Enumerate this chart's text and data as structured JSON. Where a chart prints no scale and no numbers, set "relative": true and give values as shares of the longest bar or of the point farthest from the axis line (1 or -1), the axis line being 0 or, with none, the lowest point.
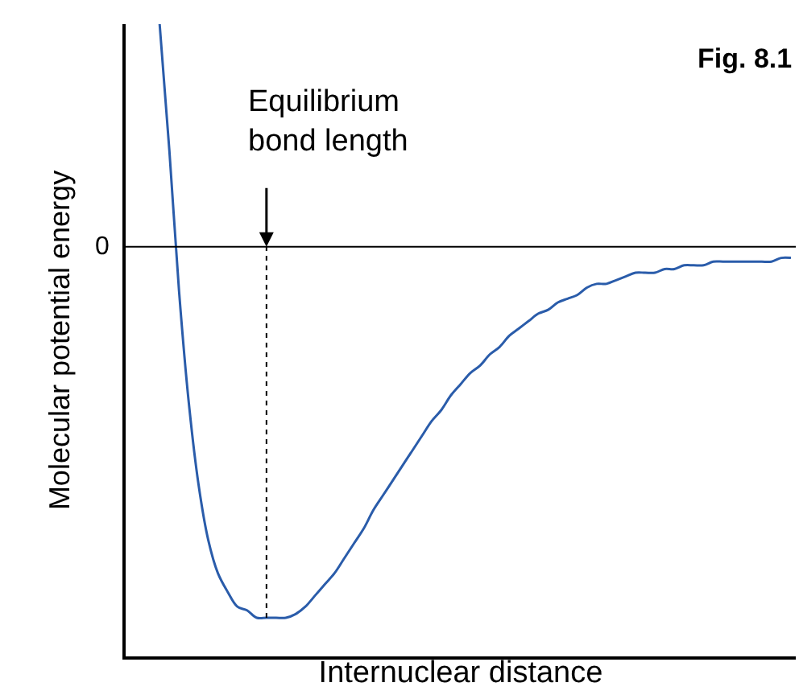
{
  "chart_data": {
    "type": "line",
    "relative": true,
    "xlabel": "Internuclear distance",
    "ylabel": "Molecular potential energy",
    "categories": [
      null,
      null,
      null,
      null,
      null,
      null,
      null,
      null,
      null,
      null,
      null,
      null,
      null,
      null,
      null,
      null,
      null,
      null,
      null,
      null,
      null,
      null,
      null,
      null,
      null,
      null,
      null,
      null,
      null,
      null,
      null,
      null,
      null,
      null,
      null,
      null,
      null,
      null,
      null,
      null,
      null,
      null,
      null,
      null,
      null,
      null,
      null,
      null,
      null,
      null,
      null,
      null,
      null,
      null,
      null,
      null,
      null,
      null,
      null,
      null,
      null,
      null,
      null,
      null,
      null,
      null
    ],
    "series": [
      {
        "color": "#2a5caa",
        "values": [
          0.6,
          0.26,
          -0.12,
          -0.42,
          -0.64,
          -0.79,
          -0.88,
          -0.93,
          -0.97,
          -0.98,
          -1.0,
          -1.0,
          -1.0,
          -1.0,
          -0.99,
          -0.97,
          -0.94,
          -0.91,
          -0.88,
          -0.84,
          -0.8,
          -0.76,
          -0.71,
          -0.67,
          -0.63,
          -0.59,
          -0.55,
          -0.51,
          -0.47,
          -0.44,
          -0.4,
          -0.37,
          -0.34,
          -0.32,
          -0.29,
          -0.27,
          -0.24,
          -0.22,
          -0.2,
          -0.18,
          -0.17,
          -0.15,
          -0.14,
          -0.13,
          -0.11,
          -0.1,
          -0.1,
          -0.09,
          -0.08,
          -0.07,
          -0.07,
          -0.07,
          -0.06,
          -0.06,
          -0.05,
          -0.05,
          -0.05,
          -0.04,
          -0.04,
          -0.04,
          -0.04,
          -0.04,
          -0.04,
          -0.04,
          -0.03,
          -0.03
        ]
      }
    ],
    "ref_lines": [
      {
        "axis": "y",
        "value": 0,
        "label": "0",
        "color": "#000000"
      }
    ],
    "annotations": [
      "Equilibrium\nbond length",
      "Fig. 8.1"
    ],
    "marker": "none",
    "line_style": "solid"
  }
}
